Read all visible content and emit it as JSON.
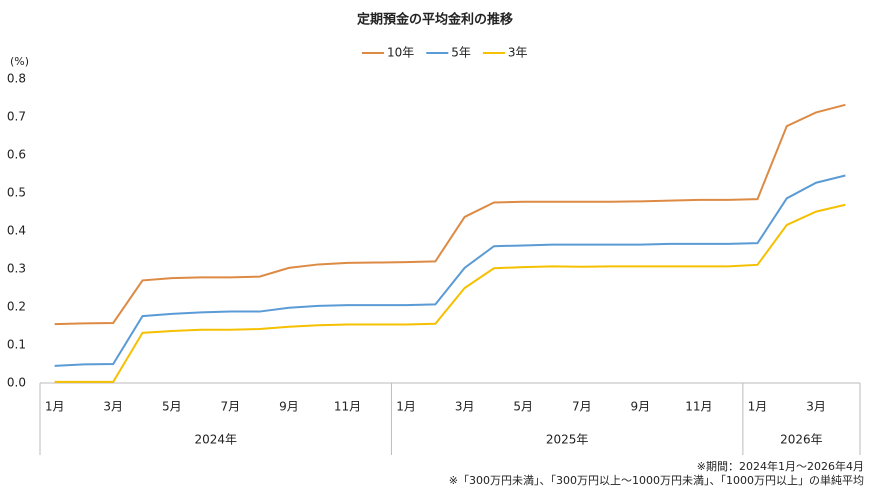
{
  "chart_data": {
    "type": "line",
    "title": "定期預金の平均金利の推移",
    "y_unit": "(%)",
    "categories": [
      "1月",
      null,
      "3月",
      null,
      "5月",
      null,
      "7月",
      null,
      "9月",
      null,
      "11月",
      null,
      "1月",
      null,
      "3月",
      null,
      "5月",
      null,
      "7月",
      null,
      "9月",
      null,
      "11月",
      null,
      "1月",
      null,
      "3月",
      null
    ],
    "x_groups": [
      {
        "label": "2024年",
        "count": 12
      },
      {
        "label": "2025年",
        "count": 12
      },
      {
        "label": "2026年",
        "count": 4
      }
    ],
    "series": [
      {
        "name": "10年",
        "color": "#dd8a45",
        "values": [
          0.155,
          0.157,
          0.158,
          0.27,
          0.276,
          0.278,
          0.278,
          0.28,
          0.303,
          0.312,
          0.316,
          0.317,
          0.318,
          0.32,
          0.437,
          0.475,
          0.477,
          0.477,
          0.477,
          0.477,
          0.478,
          0.48,
          0.482,
          0.482,
          0.484,
          0.676,
          0.712,
          0.732
        ]
      },
      {
        "name": "5年",
        "color": "#5b9bd5",
        "values": [
          0.045,
          0.049,
          0.05,
          0.176,
          0.182,
          0.186,
          0.188,
          0.188,
          0.198,
          0.203,
          0.205,
          0.205,
          0.205,
          0.207,
          0.303,
          0.36,
          0.362,
          0.364,
          0.364,
          0.364,
          0.364,
          0.366,
          0.366,
          0.366,
          0.368,
          0.486,
          0.527,
          0.546
        ]
      },
      {
        "name": "3年",
        "color": "#f5c000",
        "values": [
          0.003,
          0.003,
          0.003,
          0.132,
          0.137,
          0.14,
          0.14,
          0.142,
          0.148,
          0.152,
          0.154,
          0.154,
          0.154,
          0.156,
          0.25,
          0.302,
          0.305,
          0.307,
          0.306,
          0.307,
          0.307,
          0.307,
          0.307,
          0.307,
          0.311,
          0.416,
          0.451,
          0.469
        ]
      }
    ],
    "ylim": [
      0,
      0.8
    ],
    "yticks": [
      {
        "value": 0,
        "label": "0.0"
      },
      0.1,
      0.2,
      0.3,
      0.4,
      0.5,
      0.6,
      0.7,
      0.8
    ],
    "grid": false,
    "legend": "top",
    "notes": [
      "※期間：2024年1月～2026年4月",
      "※「300万円未満」、「300万円以上～1000万円未満」、「1000万円以上」の単純平均"
    ]
  }
}
